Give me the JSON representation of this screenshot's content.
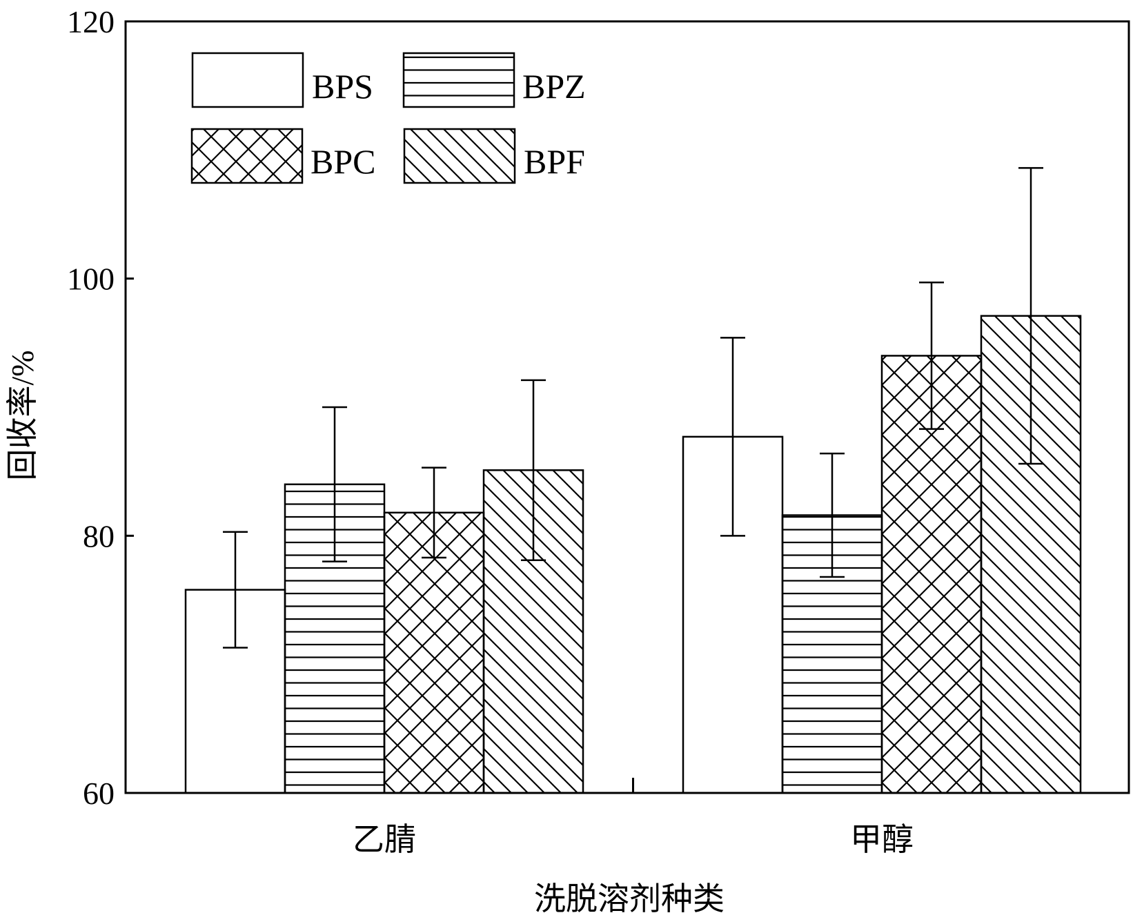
{
  "chart_data": {
    "type": "bar",
    "categories": [
      "乙腈",
      "甲醇"
    ],
    "series": [
      {
        "name": "BPS",
        "pattern": "none",
        "values": [
          75.8,
          87.7
        ],
        "errors": [
          4.5,
          7.7
        ]
      },
      {
        "name": "BPZ",
        "pattern": "horizontal",
        "values": [
          84.0,
          81.6
        ],
        "errors": [
          6.0,
          4.8
        ]
      },
      {
        "name": "BPC",
        "pattern": "crosshatch",
        "values": [
          81.8,
          94.0
        ],
        "errors": [
          3.5,
          5.7
        ]
      },
      {
        "name": "BPF",
        "pattern": "diagonal",
        "values": [
          85.1,
          97.1
        ],
        "errors": [
          7.0,
          11.5
        ]
      }
    ],
    "ylabel": "回收率/%",
    "xlabel": "洗脱溶剂种类",
    "ylim": [
      60,
      120
    ],
    "yticks": [
      60,
      80,
      100,
      120
    ],
    "legend": "top-left",
    "grid": false
  }
}
